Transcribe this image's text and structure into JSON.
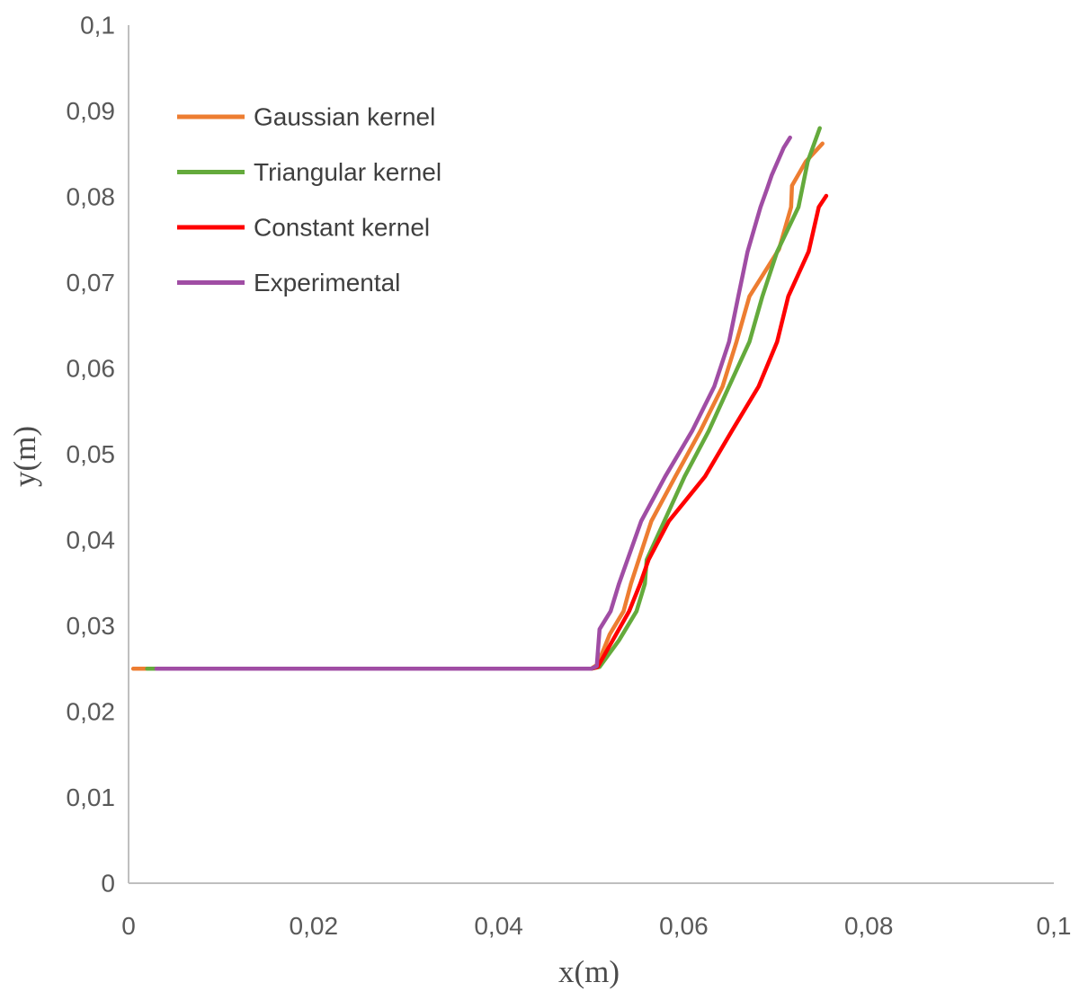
{
  "chart_data": {
    "type": "line",
    "title": "",
    "xlabel": "x(m)",
    "ylabel": "y(m)",
    "xlim": [
      0,
      0.1
    ],
    "ylim": [
      0,
      0.1
    ],
    "grid": false,
    "legend_position": "upper-left-inside",
    "decimal_separator": ",",
    "x_ticks": [
      {
        "value": 0,
        "label": "0"
      },
      {
        "value": 0.02,
        "label": "0,02"
      },
      {
        "value": 0.04,
        "label": "0,04"
      },
      {
        "value": 0.06,
        "label": "0,06"
      },
      {
        "value": 0.08,
        "label": "0,08"
      },
      {
        "value": 0.1,
        "label": "0,1"
      }
    ],
    "y_ticks": [
      {
        "value": 0,
        "label": "0"
      },
      {
        "value": 0.01,
        "label": "0,01"
      },
      {
        "value": 0.02,
        "label": "0,02"
      },
      {
        "value": 0.03,
        "label": "0,03"
      },
      {
        "value": 0.04,
        "label": "0,04"
      },
      {
        "value": 0.05,
        "label": "0,05"
      },
      {
        "value": 0.06,
        "label": "0,06"
      },
      {
        "value": 0.07,
        "label": "0,07"
      },
      {
        "value": 0.08,
        "label": "0,08"
      },
      {
        "value": 0.09,
        "label": "0,09"
      },
      {
        "value": 0.1,
        "label": "0,1"
      }
    ],
    "series": [
      {
        "name": "Gaussian kernel",
        "color": "#ED7D31",
        "points": [
          [
            0.0005,
            0.025
          ],
          [
            0.05,
            0.025
          ],
          [
            0.0507,
            0.0255
          ],
          [
            0.052,
            0.029
          ],
          [
            0.0535,
            0.0317
          ],
          [
            0.0543,
            0.0349
          ],
          [
            0.0565,
            0.0422
          ],
          [
            0.0591,
            0.0474
          ],
          [
            0.0618,
            0.0527
          ],
          [
            0.0642,
            0.0579
          ],
          [
            0.0657,
            0.0631
          ],
          [
            0.0671,
            0.0684
          ],
          [
            0.0703,
            0.0739
          ],
          [
            0.0716,
            0.0788
          ],
          [
            0.0717,
            0.0813
          ],
          [
            0.0732,
            0.0841
          ],
          [
            0.075,
            0.0862
          ]
        ]
      },
      {
        "name": "Triangular kernel",
        "color": "#64AA3C",
        "points": [
          [
            0.002,
            0.025
          ],
          [
            0.05,
            0.025
          ],
          [
            0.0509,
            0.0252
          ],
          [
            0.053,
            0.0283
          ],
          [
            0.0549,
            0.0317
          ],
          [
            0.0558,
            0.0349
          ],
          [
            0.056,
            0.0377
          ],
          [
            0.0579,
            0.0422
          ],
          [
            0.0601,
            0.0474
          ],
          [
            0.0627,
            0.0527
          ],
          [
            0.0649,
            0.0579
          ],
          [
            0.0671,
            0.0631
          ],
          [
            0.0685,
            0.0684
          ],
          [
            0.0701,
            0.0736
          ],
          [
            0.0724,
            0.0788
          ],
          [
            0.0734,
            0.0841
          ],
          [
            0.0747,
            0.088
          ]
        ]
      },
      {
        "name": "Constant kernel",
        "color": "#FF0000",
        "points": [
          [
            0.004,
            0.025
          ],
          [
            0.05,
            0.025
          ],
          [
            0.0507,
            0.0252
          ],
          [
            0.0541,
            0.0317
          ],
          [
            0.0553,
            0.0349
          ],
          [
            0.0562,
            0.0377
          ],
          [
            0.0584,
            0.0422
          ],
          [
            0.0623,
            0.0474
          ],
          [
            0.0652,
            0.0527
          ],
          [
            0.0681,
            0.0579
          ],
          [
            0.0701,
            0.0631
          ],
          [
            0.0713,
            0.0684
          ],
          [
            0.0735,
            0.0736
          ],
          [
            0.0746,
            0.0788
          ],
          [
            0.0754,
            0.0801
          ]
        ]
      },
      {
        "name": "Experimental",
        "color": "#A04DA4",
        "points": [
          [
            0.003,
            0.025
          ],
          [
            0.05,
            0.025
          ],
          [
            0.0506,
            0.0253
          ],
          [
            0.0509,
            0.0296
          ],
          [
            0.0521,
            0.0317
          ],
          [
            0.053,
            0.0349
          ],
          [
            0.0554,
            0.0422
          ],
          [
            0.058,
            0.0474
          ],
          [
            0.0609,
            0.0527
          ],
          [
            0.0633,
            0.0579
          ],
          [
            0.0649,
            0.0631
          ],
          [
            0.0659,
            0.0684
          ],
          [
            0.0669,
            0.0736
          ],
          [
            0.0683,
            0.0788
          ],
          [
            0.069,
            0.0809
          ],
          [
            0.0695,
            0.0825
          ],
          [
            0.0708,
            0.0857
          ],
          [
            0.0715,
            0.0869
          ]
        ]
      }
    ],
    "style": {
      "background": "#FFFFFF",
      "axis_line_color": "#BFBFBF",
      "tick_label_color": "#595959",
      "legend_text_color": "#3F3F3F",
      "axis_title_color": "#4A4A4A"
    }
  }
}
